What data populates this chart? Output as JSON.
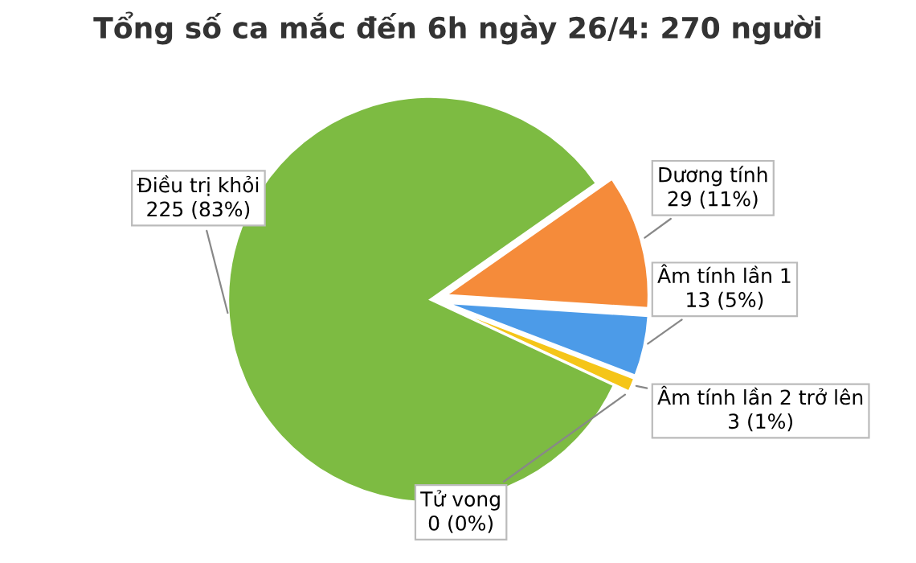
{
  "chart_data": {
    "type": "pie",
    "title": "Tổng số ca mắc đến 6h ngày 26/4: 270 người",
    "categories": [
      "Dương tính",
      "Âm tính lần 1",
      "Âm tính lần 2 trở lên",
      "Tử vong",
      "Điều trị khỏi"
    ],
    "values": [
      29,
      13,
      3,
      0,
      225
    ],
    "value_labels": [
      "29 (11%)",
      "13 (5%)",
      "3 (1%)",
      "0 (0%)",
      "225 (83%)"
    ],
    "colors": [
      "#f58b3a",
      "#4c9be8",
      "#f5c518",
      "#7f7f7f",
      "#7dbb42"
    ],
    "legend": false
  }
}
